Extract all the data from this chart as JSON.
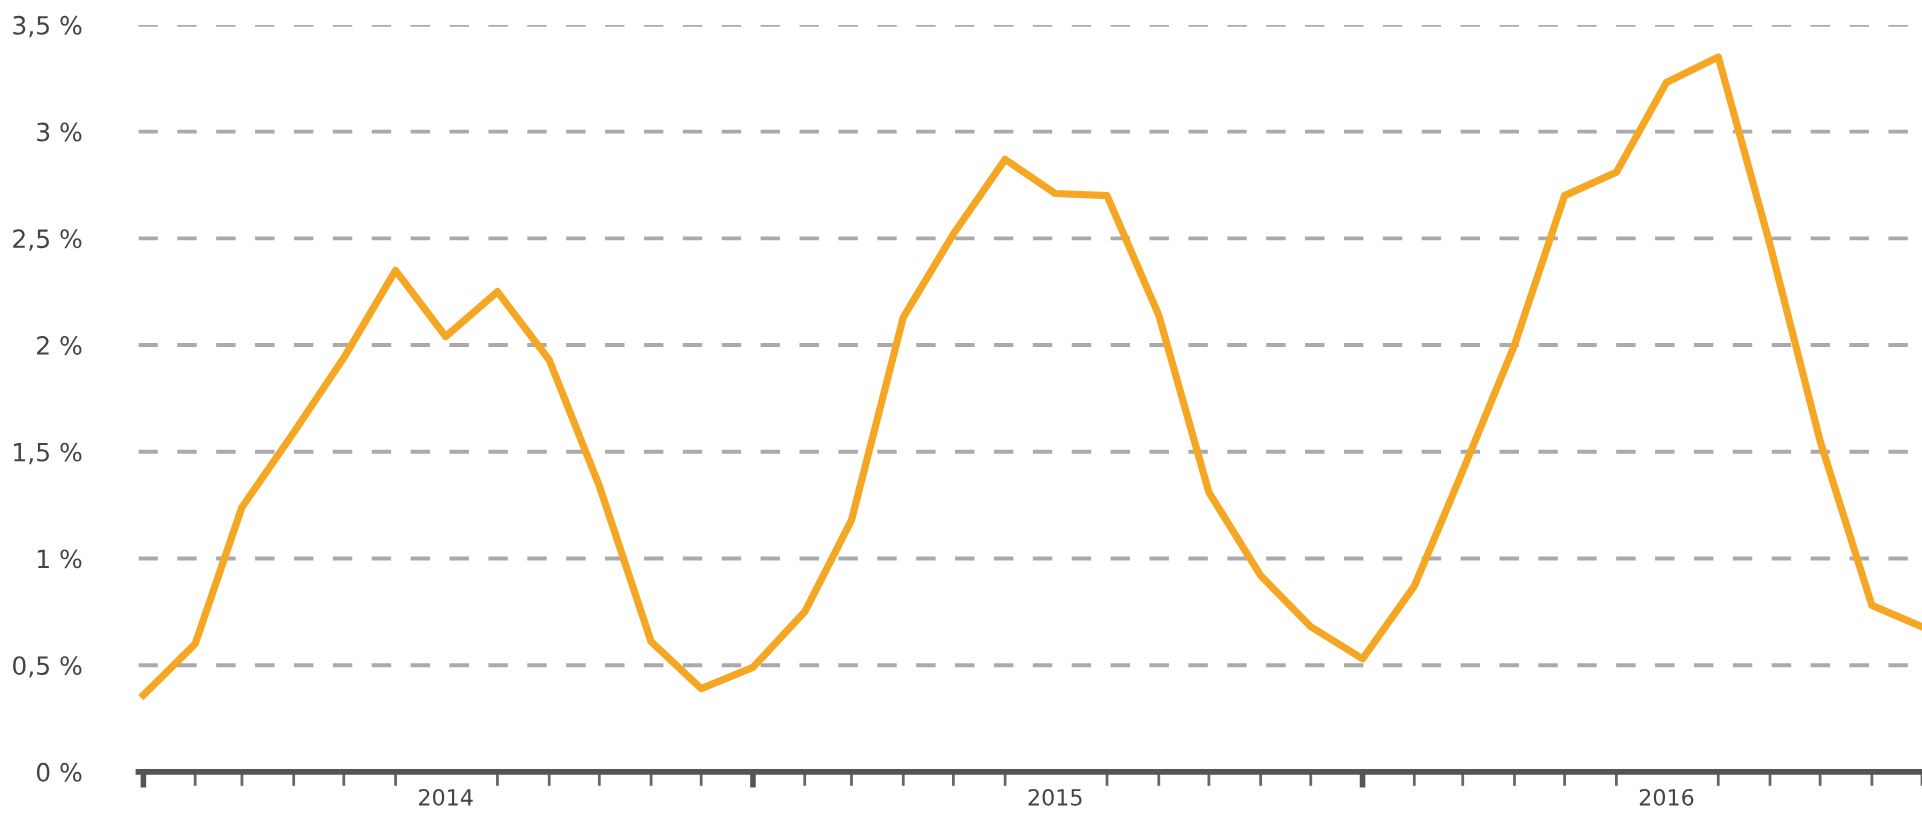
{
  "chart_data": {
    "type": "line",
    "x": [
      "2014-01",
      "2014-02",
      "2014-03",
      "2014-04",
      "2014-05",
      "2014-06",
      "2014-07",
      "2014-08",
      "2014-09",
      "2014-10",
      "2014-11",
      "2014-12",
      "2015-01",
      "2015-02",
      "2015-03",
      "2015-04",
      "2015-05",
      "2015-06",
      "2015-07",
      "2015-08",
      "2015-09",
      "2015-10",
      "2015-11",
      "2015-12",
      "2016-01",
      "2016-02",
      "2016-03",
      "2016-04",
      "2016-05",
      "2016-06",
      "2016-07",
      "2016-08",
      "2016-09",
      "2016-10",
      "2016-11",
      "2016-12"
    ],
    "series": [
      {
        "color": "#f5a623",
        "values": [
          0.36,
          0.6,
          1.24,
          1.59,
          1.94,
          2.35,
          2.04,
          2.25,
          1.93,
          1.34,
          0.61,
          0.39,
          0.49,
          0.75,
          1.18,
          2.13,
          2.52,
          2.87,
          2.71,
          2.7,
          2.14,
          1.31,
          0.92,
          0.68,
          0.53,
          0.87,
          1.41,
          2.0,
          2.7,
          2.81,
          3.23,
          3.35,
          2.47,
          1.55,
          0.78,
          0.68
        ]
      }
    ],
    "ylim": [
      0,
      3.5
    ],
    "yticks": [
      {
        "value": 0,
        "label": "0 %"
      },
      {
        "value": 0.5,
        "label": "0,5 %"
      },
      {
        "value": 1,
        "label": "1 %"
      },
      {
        "value": 1.5,
        "label": "1,5 %"
      },
      {
        "value": 2,
        "label": "2 %"
      },
      {
        "value": 2.5,
        "label": "2,5 %"
      },
      {
        "value": 3,
        "label": "3 %"
      },
      {
        "value": 3.5,
        "label": "3,5 %"
      }
    ],
    "xlim": [
      "2013-12-29",
      "2016-12-01"
    ],
    "xticks": [
      {
        "value": "2014-01",
        "label": null
      },
      {
        "value": "2014-02",
        "label": null
      },
      {
        "value": "2014-03",
        "label": null
      },
      {
        "value": "2014-04",
        "label": null
      },
      {
        "value": "2014-05",
        "label": null
      },
      {
        "value": "2014-06",
        "label": null
      },
      {
        "value": "2014-07",
        "label": "2014"
      },
      {
        "value": "2014-08",
        "label": null
      },
      {
        "value": "2014-09",
        "label": null
      },
      {
        "value": "2014-10",
        "label": null
      },
      {
        "value": "2014-11",
        "label": null
      },
      {
        "value": "2014-12",
        "label": null
      },
      {
        "value": "2015-01",
        "label": null
      },
      {
        "value": "2015-02",
        "label": null
      },
      {
        "value": "2015-03",
        "label": null
      },
      {
        "value": "2015-04",
        "label": null
      },
      {
        "value": "2015-05",
        "label": null
      },
      {
        "value": "2015-06",
        "label": null
      },
      {
        "value": "2015-07",
        "label": "2015"
      },
      {
        "value": "2015-08",
        "label": null
      },
      {
        "value": "2015-09",
        "label": null
      },
      {
        "value": "2015-10",
        "label": null
      },
      {
        "value": "2015-11",
        "label": null
      },
      {
        "value": "2015-12",
        "label": null
      },
      {
        "value": "2016-01",
        "label": null
      },
      {
        "value": "2016-02",
        "label": null
      },
      {
        "value": "2016-03",
        "label": null
      },
      {
        "value": "2016-04",
        "label": null
      },
      {
        "value": "2016-05",
        "label": null
      },
      {
        "value": "2016-06",
        "label": null
      },
      {
        "value": "2016-07",
        "label": "2016"
      },
      {
        "value": "2016-08",
        "label": null
      },
      {
        "value": "2016-09",
        "label": null
      },
      {
        "value": "2016-10",
        "label": null
      },
      {
        "value": "2016-11",
        "label": null
      },
      {
        "value": "2016-12",
        "label": null
      }
    ],
    "grid": "y",
    "line_style": "solid",
    "marker": "none"
  }
}
